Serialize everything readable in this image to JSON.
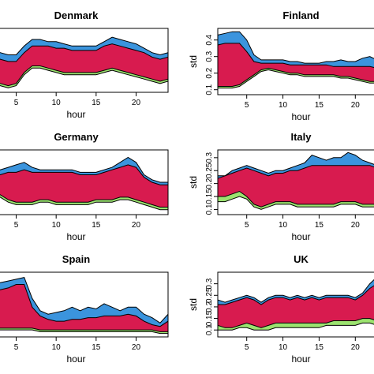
{
  "colors": {
    "blue": "#3b94dd",
    "red": "#d81b4f",
    "green": "#9be36f",
    "axis": "#000000"
  },
  "chart_data": [
    {
      "type": "area",
      "title": "Denmark",
      "xlabel": "hour",
      "ylabel": "",
      "xlim": [
        1,
        24
      ],
      "ylim": [
        0.13,
        0.42
      ],
      "xticks": [
        5,
        10,
        15,
        20
      ],
      "yticks": [],
      "x": [
        1,
        2,
        3,
        4,
        5,
        6,
        7,
        8,
        9,
        10,
        11,
        12,
        13,
        14,
        15,
        16,
        17,
        18,
        19,
        20,
        21,
        22,
        23,
        24
      ],
      "series": [
        {
          "color": "blue",
          "values": [
            0.37,
            0.33,
            0.31,
            0.3,
            0.3,
            0.34,
            0.37,
            0.37,
            0.36,
            0.36,
            0.35,
            0.34,
            0.34,
            0.34,
            0.34,
            0.36,
            0.38,
            0.37,
            0.36,
            0.35,
            0.33,
            0.31,
            0.3,
            0.31
          ]
        },
        {
          "color": "red",
          "values": [
            0.33,
            0.3,
            0.28,
            0.27,
            0.27,
            0.31,
            0.34,
            0.34,
            0.34,
            0.33,
            0.33,
            0.32,
            0.32,
            0.32,
            0.32,
            0.34,
            0.35,
            0.34,
            0.33,
            0.32,
            0.31,
            0.29,
            0.28,
            0.29
          ]
        },
        {
          "color": "green",
          "values": [
            0.2,
            0.18,
            0.17,
            0.16,
            0.17,
            0.22,
            0.25,
            0.25,
            0.24,
            0.23,
            0.22,
            0.22,
            0.22,
            0.22,
            0.22,
            0.23,
            0.24,
            0.23,
            0.22,
            0.21,
            0.2,
            0.19,
            0.18,
            0.19
          ]
        },
        {
          "color": "bottom",
          "values": [
            0.19,
            0.17,
            0.16,
            0.15,
            0.16,
            0.21,
            0.24,
            0.24,
            0.23,
            0.22,
            0.21,
            0.21,
            0.21,
            0.21,
            0.21,
            0.22,
            0.23,
            0.22,
            0.21,
            0.2,
            0.19,
            0.18,
            0.17,
            0.18
          ]
        }
      ]
    },
    {
      "type": "area",
      "title": "Finland",
      "xlabel": "hour",
      "ylabel": "std",
      "xlim": [
        1,
        24
      ],
      "ylim": [
        0.07,
        0.47
      ],
      "xticks": [
        5,
        10,
        15,
        20
      ],
      "yticks": [
        0.1,
        0.2,
        0.3,
        0.4
      ],
      "x": [
        1,
        2,
        3,
        4,
        5,
        6,
        7,
        8,
        9,
        10,
        11,
        12,
        13,
        14,
        15,
        16,
        17,
        18,
        19,
        20,
        21,
        22,
        23,
        24
      ],
      "series": [
        {
          "color": "blue",
          "values": [
            0.43,
            0.44,
            0.45,
            0.45,
            0.4,
            0.31,
            0.28,
            0.28,
            0.28,
            0.28,
            0.27,
            0.27,
            0.26,
            0.26,
            0.26,
            0.27,
            0.27,
            0.28,
            0.27,
            0.27,
            0.29,
            0.3,
            0.28,
            0.28
          ]
        },
        {
          "color": "red",
          "values": [
            0.37,
            0.38,
            0.38,
            0.38,
            0.33,
            0.27,
            0.26,
            0.26,
            0.26,
            0.26,
            0.25,
            0.25,
            0.25,
            0.25,
            0.25,
            0.25,
            0.24,
            0.24,
            0.24,
            0.24,
            0.24,
            0.24,
            0.23,
            0.23
          ]
        },
        {
          "color": "green",
          "values": [
            0.12,
            0.12,
            0.12,
            0.13,
            0.16,
            0.19,
            0.22,
            0.23,
            0.22,
            0.21,
            0.2,
            0.2,
            0.19,
            0.19,
            0.19,
            0.19,
            0.19,
            0.18,
            0.18,
            0.17,
            0.16,
            0.15,
            0.15,
            0.15
          ]
        },
        {
          "color": "bottom",
          "values": [
            0.11,
            0.11,
            0.11,
            0.12,
            0.15,
            0.18,
            0.21,
            0.22,
            0.21,
            0.2,
            0.19,
            0.19,
            0.18,
            0.18,
            0.18,
            0.18,
            0.18,
            0.17,
            0.17,
            0.16,
            0.15,
            0.14,
            0.14,
            0.14
          ]
        }
      ]
    },
    {
      "type": "area",
      "title": "Germany",
      "xlabel": "hour",
      "ylabel": "",
      "xlim": [
        1,
        24
      ],
      "ylim": [
        0.08,
        0.34
      ],
      "xticks": [
        5,
        10,
        15,
        20
      ],
      "yticks": [],
      "x": [
        1,
        2,
        3,
        4,
        5,
        6,
        7,
        8,
        9,
        10,
        11,
        12,
        13,
        14,
        15,
        16,
        17,
        18,
        19,
        20,
        21,
        22,
        23,
        24
      ],
      "series": [
        {
          "color": "blue",
          "values": [
            0.25,
            0.26,
            0.26,
            0.27,
            0.28,
            0.29,
            0.27,
            0.26,
            0.26,
            0.26,
            0.26,
            0.26,
            0.25,
            0.25,
            0.25,
            0.26,
            0.27,
            0.29,
            0.31,
            0.29,
            0.24,
            0.22,
            0.21,
            0.21
          ]
        },
        {
          "color": "red",
          "values": [
            0.23,
            0.24,
            0.24,
            0.25,
            0.25,
            0.26,
            0.25,
            0.25,
            0.25,
            0.25,
            0.25,
            0.25,
            0.24,
            0.24,
            0.24,
            0.25,
            0.26,
            0.27,
            0.28,
            0.27,
            0.23,
            0.21,
            0.2,
            0.2
          ]
        },
        {
          "color": "green",
          "values": [
            0.15,
            0.17,
            0.16,
            0.14,
            0.13,
            0.13,
            0.13,
            0.14,
            0.14,
            0.13,
            0.13,
            0.13,
            0.13,
            0.13,
            0.14,
            0.14,
            0.14,
            0.15,
            0.15,
            0.14,
            0.13,
            0.12,
            0.11,
            0.11
          ]
        },
        {
          "color": "bottom",
          "values": [
            0.14,
            0.16,
            0.15,
            0.13,
            0.12,
            0.12,
            0.12,
            0.13,
            0.13,
            0.12,
            0.12,
            0.12,
            0.12,
            0.12,
            0.13,
            0.13,
            0.13,
            0.14,
            0.14,
            0.13,
            0.12,
            0.11,
            0.1,
            0.1
          ]
        }
      ]
    },
    {
      "type": "area",
      "title": "Italy",
      "xlabel": "hour",
      "ylabel": "std",
      "xlim": [
        1,
        24
      ],
      "ylim": [
        0.08,
        0.33
      ],
      "xticks": [
        5,
        10,
        15,
        20
      ],
      "yticks": [
        0.1,
        0.15,
        0.2,
        0.25,
        0.3
      ],
      "x": [
        1,
        2,
        3,
        4,
        5,
        6,
        7,
        8,
        9,
        10,
        11,
        12,
        13,
        14,
        15,
        16,
        17,
        18,
        19,
        20,
        21,
        22,
        23,
        24
      ],
      "series": [
        {
          "color": "blue",
          "values": [
            0.23,
            0.23,
            0.25,
            0.26,
            0.27,
            0.26,
            0.25,
            0.24,
            0.25,
            0.25,
            0.26,
            0.27,
            0.28,
            0.31,
            0.3,
            0.29,
            0.3,
            0.3,
            0.32,
            0.31,
            0.29,
            0.28,
            0.27,
            0.29
          ]
        },
        {
          "color": "red",
          "values": [
            0.22,
            0.23,
            0.24,
            0.25,
            0.26,
            0.25,
            0.24,
            0.23,
            0.24,
            0.24,
            0.25,
            0.25,
            0.26,
            0.27,
            0.27,
            0.27,
            0.27,
            0.27,
            0.27,
            0.27,
            0.27,
            0.27,
            0.26,
            0.27
          ]
        },
        {
          "color": "green",
          "values": [
            0.15,
            0.15,
            0.16,
            0.17,
            0.15,
            0.12,
            0.11,
            0.12,
            0.13,
            0.13,
            0.13,
            0.12,
            0.12,
            0.12,
            0.12,
            0.12,
            0.12,
            0.13,
            0.13,
            0.13,
            0.12,
            0.12,
            0.12,
            0.12
          ]
        },
        {
          "color": "bottom",
          "values": [
            0.13,
            0.13,
            0.14,
            0.15,
            0.14,
            0.11,
            0.1,
            0.11,
            0.12,
            0.12,
            0.12,
            0.11,
            0.11,
            0.11,
            0.11,
            0.11,
            0.11,
            0.12,
            0.12,
            0.12,
            0.11,
            0.11,
            0.11,
            0.11
          ]
        }
      ]
    },
    {
      "type": "area",
      "title": "Spain",
      "xlabel": "hour",
      "ylabel": "",
      "xlim": [
        1,
        24
      ],
      "ylim": [
        0.05,
        0.42
      ],
      "xticks": [
        5,
        10,
        15,
        20
      ],
      "yticks": [],
      "x": [
        1,
        2,
        3,
        4,
        5,
        6,
        7,
        8,
        9,
        10,
        11,
        12,
        13,
        14,
        15,
        16,
        17,
        18,
        19,
        20,
        21,
        22,
        23,
        24
      ],
      "series": [
        {
          "color": "blue",
          "values": [
            0.33,
            0.35,
            0.36,
            0.37,
            0.38,
            0.39,
            0.27,
            0.2,
            0.18,
            0.19,
            0.2,
            0.22,
            0.2,
            0.22,
            0.21,
            0.24,
            0.22,
            0.2,
            0.22,
            0.22,
            0.18,
            0.16,
            0.13,
            0.18
          ]
        },
        {
          "color": "red",
          "values": [
            0.29,
            0.31,
            0.32,
            0.33,
            0.35,
            0.35,
            0.22,
            0.17,
            0.15,
            0.14,
            0.14,
            0.15,
            0.15,
            0.16,
            0.16,
            0.17,
            0.17,
            0.17,
            0.18,
            0.17,
            0.14,
            0.12,
            0.11,
            0.14
          ]
        },
        {
          "color": "green",
          "values": [
            0.1,
            0.1,
            0.1,
            0.1,
            0.1,
            0.1,
            0.1,
            0.09,
            0.09,
            0.09,
            0.09,
            0.09,
            0.09,
            0.09,
            0.09,
            0.09,
            0.09,
            0.09,
            0.09,
            0.09,
            0.09,
            0.09,
            0.08,
            0.08
          ]
        },
        {
          "color": "bottom",
          "values": [
            0.09,
            0.09,
            0.09,
            0.09,
            0.09,
            0.09,
            0.09,
            0.08,
            0.08,
            0.08,
            0.08,
            0.08,
            0.08,
            0.08,
            0.08,
            0.08,
            0.08,
            0.08,
            0.08,
            0.08,
            0.08,
            0.08,
            0.07,
            0.07
          ]
        }
      ]
    },
    {
      "type": "area",
      "title": "UK",
      "xlabel": "hour",
      "ylabel": "std",
      "xlim": [
        1,
        24
      ],
      "ylim": [
        0.07,
        0.35
      ],
      "xticks": [
        5,
        10,
        15,
        20
      ],
      "yticks": [
        0.1,
        0.15,
        0.2,
        0.25,
        0.3
      ],
      "x": [
        1,
        2,
        3,
        4,
        5,
        6,
        7,
        8,
        9,
        10,
        11,
        12,
        13,
        14,
        15,
        16,
        17,
        18,
        19,
        20,
        21,
        22,
        23,
        24
      ],
      "series": [
        {
          "color": "blue",
          "values": [
            0.23,
            0.22,
            0.23,
            0.24,
            0.25,
            0.24,
            0.22,
            0.24,
            0.25,
            0.25,
            0.24,
            0.25,
            0.24,
            0.25,
            0.24,
            0.25,
            0.25,
            0.25,
            0.25,
            0.24,
            0.26,
            0.3,
            0.33,
            0.28
          ]
        },
        {
          "color": "red",
          "values": [
            0.21,
            0.21,
            0.22,
            0.23,
            0.24,
            0.23,
            0.21,
            0.23,
            0.24,
            0.24,
            0.23,
            0.24,
            0.23,
            0.24,
            0.23,
            0.24,
            0.24,
            0.24,
            0.24,
            0.23,
            0.25,
            0.28,
            0.3,
            0.26
          ]
        },
        {
          "color": "green",
          "values": [
            0.12,
            0.11,
            0.11,
            0.12,
            0.13,
            0.12,
            0.11,
            0.12,
            0.13,
            0.13,
            0.13,
            0.13,
            0.13,
            0.13,
            0.13,
            0.13,
            0.14,
            0.14,
            0.14,
            0.14,
            0.15,
            0.15,
            0.14,
            0.13
          ]
        },
        {
          "color": "bottom",
          "values": [
            0.1,
            0.1,
            0.1,
            0.11,
            0.11,
            0.1,
            0.1,
            0.1,
            0.11,
            0.11,
            0.11,
            0.11,
            0.11,
            0.11,
            0.11,
            0.12,
            0.12,
            0.12,
            0.12,
            0.12,
            0.13,
            0.13,
            0.12,
            0.11
          ]
        }
      ]
    }
  ]
}
